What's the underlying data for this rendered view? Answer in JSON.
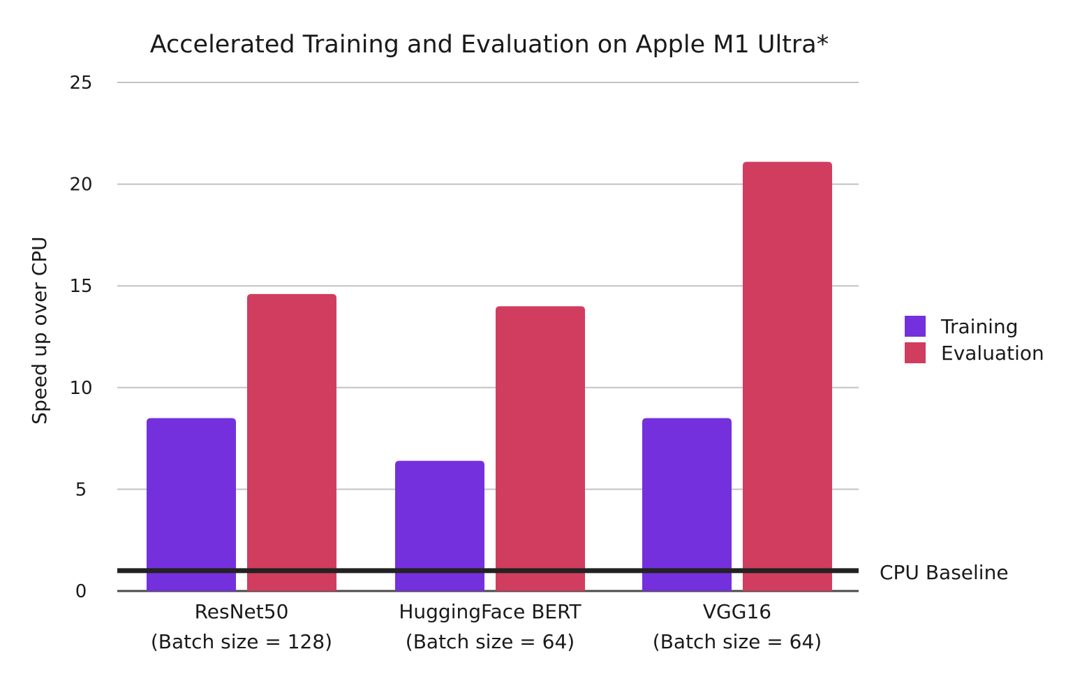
{
  "chart_data": {
    "type": "bar",
    "title": "Accelerated Training and Evaluation on Apple M1 Ultra*",
    "ylabel": "Speed up over CPU",
    "xlabel": "",
    "ylim": [
      0,
      25
    ],
    "yticks": [
      "0",
      "5",
      "10",
      "15",
      "20",
      "25"
    ],
    "grid": true,
    "legend_position": "right",
    "categories": [
      {
        "name": "ResNet50",
        "detail": "(Batch size = 128)"
      },
      {
        "name": "HuggingFace BERT",
        "detail": "(Batch size = 64)"
      },
      {
        "name": "VGG16",
        "detail": "(Batch size = 64)"
      }
    ],
    "series": [
      {
        "name": "Training",
        "color": "#7530dd",
        "values": [
          8.5,
          6.4,
          8.5
        ]
      },
      {
        "name": "Evaluation",
        "color": "#d13d5e",
        "values": [
          14.6,
          14.0,
          21.1
        ]
      }
    ],
    "baseline": {
      "label": "CPU Baseline",
      "value": 1,
      "color": "#222222"
    }
  }
}
